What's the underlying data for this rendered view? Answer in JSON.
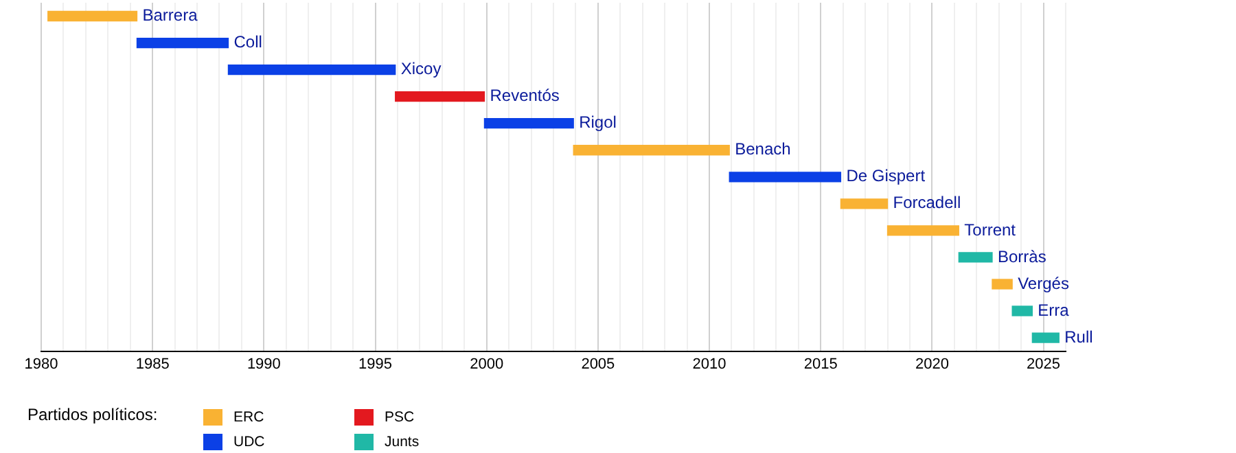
{
  "chart_data": {
    "type": "bar",
    "orientation": "horizontal",
    "categories": [
      "Barrera",
      "Coll",
      "Xicoy",
      "Reventós",
      "Rigol",
      "Benach",
      "De Gispert",
      "Forcadell",
      "Torrent",
      "Borràs",
      "Vergés",
      "Erra",
      "Rull"
    ],
    "series": [
      {
        "name": "ERC",
        "color": "#f9b233",
        "base": [
          1980.3,
          null,
          null,
          null,
          null,
          2003.9,
          null,
          2015.9,
          2018.0,
          null,
          2022.7,
          null,
          null
        ],
        "values": [
          4.0,
          null,
          null,
          null,
          null,
          7.0,
          null,
          2.1,
          3.2,
          null,
          0.9,
          null,
          null
        ]
      },
      {
        "name": "UDC",
        "color": "#0b40e6",
        "base": [
          null,
          1984.3,
          1988.4,
          null,
          1999.9,
          null,
          2010.9,
          null,
          null,
          null,
          null,
          null,
          null
        ],
        "values": [
          null,
          4.1,
          7.5,
          null,
          4.0,
          null,
          5.0,
          null,
          null,
          null,
          null,
          null,
          null
        ]
      },
      {
        "name": "PSC",
        "color": "#e3191f",
        "base": [
          null,
          null,
          null,
          1995.9,
          null,
          null,
          null,
          null,
          null,
          null,
          null,
          null,
          null
        ],
        "values": [
          null,
          null,
          null,
          4.0,
          null,
          null,
          null,
          null,
          null,
          null,
          null,
          null,
          null
        ]
      },
      {
        "name": "Junts",
        "color": "#20b8a6",
        "base": [
          null,
          null,
          null,
          null,
          null,
          null,
          null,
          null,
          null,
          2021.2,
          null,
          2023.6,
          2024.5
        ],
        "values": [
          null,
          null,
          null,
          null,
          null,
          null,
          null,
          null,
          null,
          1.5,
          null,
          0.9,
          1.2
        ]
      }
    ],
    "legend_title": "Partidos políticos:",
    "legend": "bottom",
    "grid": "x",
    "tick_labels": "x",
    "xlim": [
      1980,
      2026
    ],
    "xticks": [
      1980,
      {
        "value": 1981,
        "label": null
      },
      {
        "value": 1982,
        "label": null
      },
      {
        "value": 1983,
        "label": null
      },
      {
        "value": 1984,
        "label": null
      },
      1985,
      {
        "value": 1986,
        "label": null
      },
      {
        "value": 1987,
        "label": null
      },
      {
        "value": 1988,
        "label": null
      },
      {
        "value": 1989,
        "label": null
      },
      1990,
      {
        "value": 1991,
        "label": null
      },
      {
        "value": 1992,
        "label": null
      },
      {
        "value": 1993,
        "label": null
      },
      {
        "value": 1994,
        "label": null
      },
      1995,
      {
        "value": 1996,
        "label": null
      },
      {
        "value": 1997,
        "label": null
      },
      {
        "value": 1998,
        "label": null
      },
      {
        "value": 1999,
        "label": null
      },
      2000,
      {
        "value": 2001,
        "label": null
      },
      {
        "value": 2002,
        "label": null
      },
      {
        "value": 2003,
        "label": null
      },
      {
        "value": 2004,
        "label": null
      },
      2005,
      {
        "value": 2006,
        "label": null
      },
      {
        "value": 2007,
        "label": null
      },
      {
        "value": 2008,
        "label": null
      },
      {
        "value": 2009,
        "label": null
      },
      2010,
      {
        "value": 2011,
        "label": null
      },
      {
        "value": 2012,
        "label": null
      },
      {
        "value": 2013,
        "label": null
      },
      {
        "value": 2014,
        "label": null
      },
      2015,
      {
        "value": 2016,
        "label": null
      },
      {
        "value": 2017,
        "label": null
      },
      {
        "value": 2018,
        "label": null
      },
      {
        "value": 2019,
        "label": null
      },
      2020,
      {
        "value": 2021,
        "label": null
      },
      {
        "value": 2022,
        "label": null
      },
      {
        "value": 2023,
        "label": null
      },
      {
        "value": 2024,
        "label": null
      },
      2025,
      {
        "value": 2026,
        "label": null
      }
    ]
  }
}
